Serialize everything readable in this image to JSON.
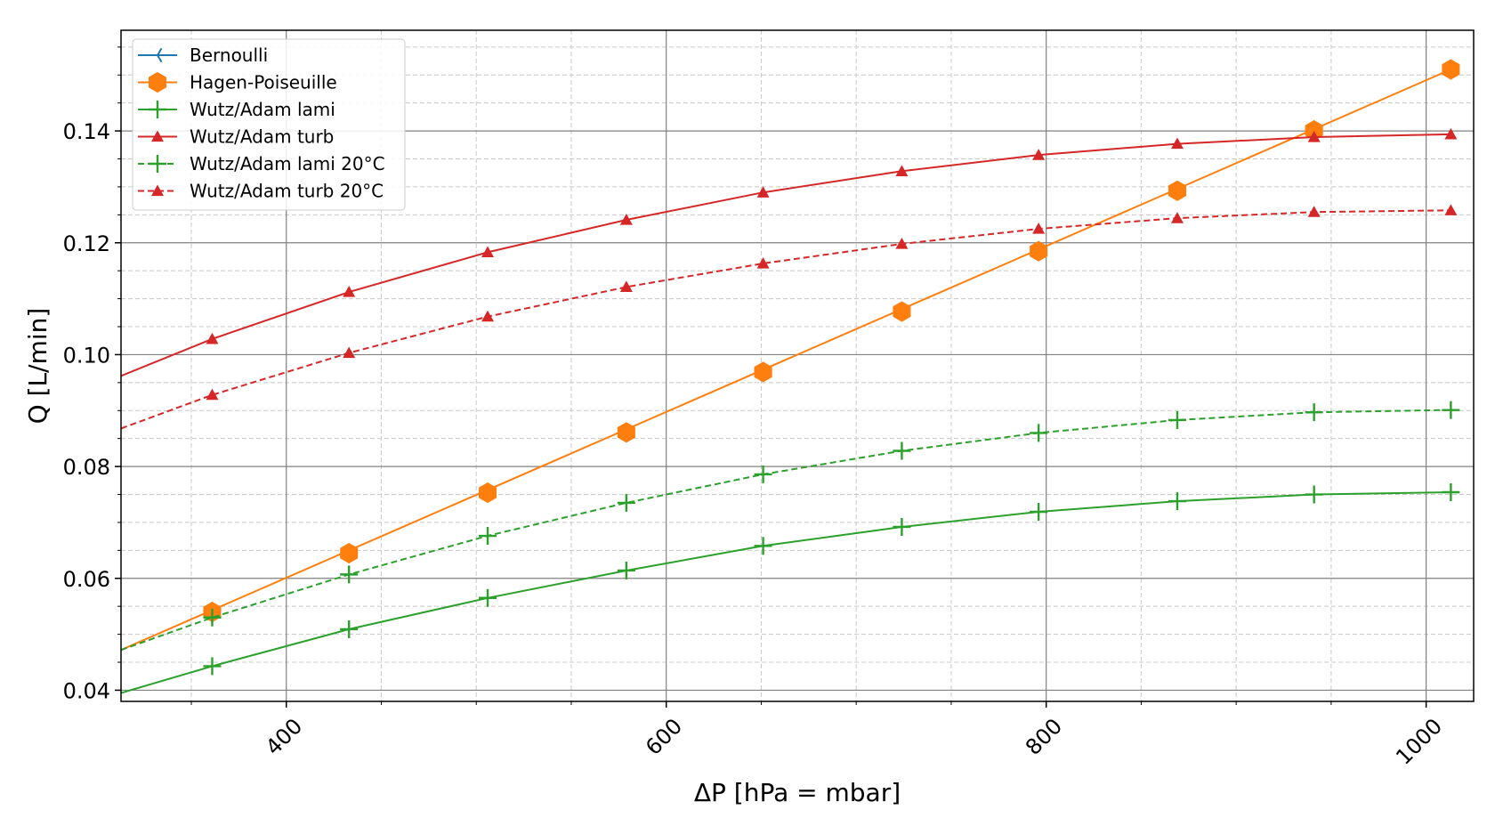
{
  "chart_data": {
    "type": "line",
    "xlabel": "ΔP [hPa = mbar]",
    "ylabel": "Q [L/min]",
    "xlim": [
      313,
      1025
    ],
    "ylim": [
      0.038,
      0.158
    ],
    "x_ticks": [
      400,
      600,
      800,
      1000
    ],
    "x_tick_labels": [
      "400",
      "600",
      "800",
      "1000"
    ],
    "y_ticks": [
      0.04,
      0.06,
      0.08,
      0.1,
      0.12,
      0.14
    ],
    "y_tick_labels": [
      "0.04",
      "0.06",
      "0.08",
      "0.10",
      "0.12",
      "0.14"
    ],
    "grid": true,
    "legend_position": "upper-left",
    "series": [
      {
        "name": "Bernoulli",
        "color": "#1f77b4",
        "linestyle": "solid",
        "marker": "tri_left",
        "x": [],
        "y": []
      },
      {
        "name": "Hagen-Poiseuille",
        "color": "#ff7f0e",
        "linestyle": "solid",
        "marker": "hexagon",
        "line_x": [
          313,
          1013
        ],
        "line_y": [
          0.0472,
          0.151
        ],
        "x": [
          361,
          433,
          506,
          579,
          651,
          724,
          796,
          869,
          941,
          1013
        ],
        "y": [
          0.054,
          0.0645,
          0.0753,
          0.0861,
          0.0969,
          0.1077,
          0.1185,
          0.1293,
          0.1401,
          0.151
        ]
      },
      {
        "name": "Wutz/Adam lami",
        "color": "#2ca02c",
        "linestyle": "solid",
        "marker": "plus",
        "line_x": [
          313,
          361,
          433,
          506,
          579,
          651,
          724,
          796,
          869,
          941,
          1013
        ],
        "line_y": [
          0.0395,
          0.0443,
          0.0509,
          0.0565,
          0.0614,
          0.0658,
          0.0692,
          0.0719,
          0.0738,
          0.075,
          0.0754
        ],
        "x": [
          361,
          433,
          506,
          579,
          651,
          724,
          796,
          869,
          941,
          1013
        ],
        "y": [
          0.0443,
          0.0509,
          0.0565,
          0.0614,
          0.0658,
          0.0692,
          0.0719,
          0.0738,
          0.075,
          0.0754
        ]
      },
      {
        "name": "Wutz/Adam turb",
        "color": "#d62728",
        "linestyle": "solid",
        "marker": "triangle",
        "line_x": [
          313,
          361,
          433,
          506,
          579,
          651,
          724,
          796,
          869,
          941,
          1013
        ],
        "line_y": [
          0.0962,
          0.1028,
          0.1112,
          0.1183,
          0.1241,
          0.129,
          0.1328,
          0.1357,
          0.1377,
          0.1389,
          0.1394
        ],
        "x": [
          361,
          433,
          506,
          579,
          651,
          724,
          796,
          869,
          941,
          1013
        ],
        "y": [
          0.1028,
          0.1112,
          0.1183,
          0.1241,
          0.129,
          0.1328,
          0.1357,
          0.1377,
          0.1389,
          0.1394
        ]
      },
      {
        "name": "Wutz/Adam lami 20°C",
        "color": "#2ca02c",
        "linestyle": "dashed",
        "marker": "plus",
        "line_x": [
          313,
          361,
          433,
          506,
          579,
          651,
          724,
          796,
          869,
          941,
          1013
        ],
        "line_y": [
          0.0472,
          0.053,
          0.0607,
          0.0676,
          0.0735,
          0.0786,
          0.0828,
          0.086,
          0.0883,
          0.0897,
          0.0901
        ],
        "x": [
          361,
          433,
          506,
          579,
          651,
          724,
          796,
          869,
          941,
          1013
        ],
        "y": [
          0.053,
          0.0607,
          0.0676,
          0.0735,
          0.0786,
          0.0828,
          0.086,
          0.0883,
          0.0897,
          0.0901
        ]
      },
      {
        "name": "Wutz/Adam turb 20°C",
        "color": "#d62728",
        "linestyle": "dashed",
        "marker": "triangle",
        "line_x": [
          313,
          361,
          433,
          506,
          579,
          651,
          724,
          796,
          869,
          941,
          1013
        ],
        "line_y": [
          0.0868,
          0.0928,
          0.1003,
          0.1068,
          0.1121,
          0.1163,
          0.1198,
          0.1225,
          0.1244,
          0.1255,
          0.1258
        ],
        "x": [
          361,
          433,
          506,
          579,
          651,
          724,
          796,
          869,
          941,
          1013
        ],
        "y": [
          0.0928,
          0.1003,
          0.1068,
          0.1121,
          0.1163,
          0.1198,
          0.1225,
          0.1244,
          0.1255,
          0.1258
        ]
      }
    ]
  }
}
